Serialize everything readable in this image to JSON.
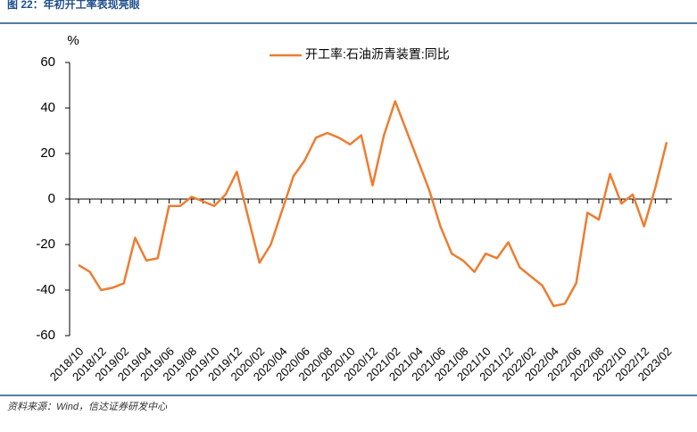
{
  "header": {
    "title": "图 22：年初开工率表现亮眼"
  },
  "chart_data": {
    "type": "line",
    "y_label": "%",
    "categories": [
      "2018/10",
      null,
      "2018/12",
      null,
      "2019/02",
      null,
      "2019/04",
      null,
      "2019/06",
      null,
      "2019/08",
      null,
      "2019/10",
      null,
      "2019/12",
      null,
      "2020/02",
      null,
      "2020/04",
      null,
      "2020/06",
      null,
      "2020/08",
      null,
      "2020/10",
      null,
      "2020/12",
      null,
      "2021/02",
      null,
      "2021/04",
      null,
      "2021/06",
      null,
      "2021/08",
      null,
      "2021/10",
      null,
      "2021/12",
      null,
      "2022/02",
      null,
      "2022/04",
      null,
      "2022/06",
      null,
      "2022/08",
      null,
      "2022/10",
      null,
      "2022/12",
      null,
      "2023/02"
    ],
    "series": [
      {
        "name": "开工率:石油沥青装置:同比",
        "color": "#ed7d31",
        "values": [
          -29,
          -32,
          -40,
          -39,
          -37,
          -17,
          -27,
          -26,
          -3,
          -3,
          1,
          -1,
          -3,
          2,
          12,
          -8,
          -28,
          -20,
          -5,
          10,
          17,
          27,
          29,
          27,
          24,
          28,
          6,
          28,
          43,
          30,
          17,
          4,
          -12,
          -24,
          -27,
          -32,
          -24,
          -26,
          -19,
          -30,
          -34,
          -38,
          -47,
          -46,
          -37,
          -6,
          -9,
          11,
          -2,
          2,
          -12,
          5,
          25
        ]
      }
    ],
    "ylim": [
      -60,
      60
    ],
    "yticks": [
      -60,
      -40,
      -20,
      0,
      20,
      40,
      60
    ],
    "legend": "top"
  },
  "footer": {
    "source": "资料来源：Wind，信达证券研发中心"
  }
}
